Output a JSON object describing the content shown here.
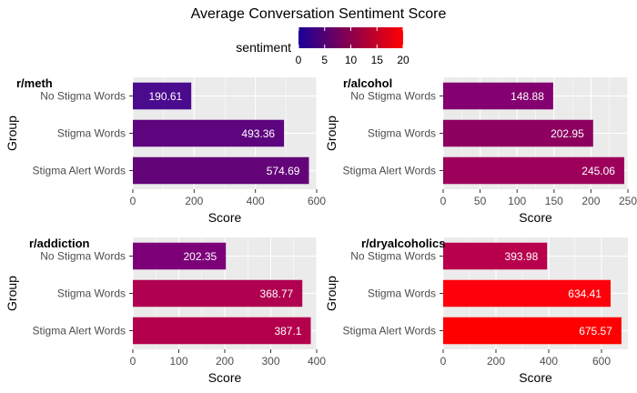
{
  "chart_data": {
    "type": "bar",
    "orientation": "horizontal",
    "title": "Average Conversation Sentiment Score",
    "xlabel": "Score",
    "ylabel": "Group",
    "grid": true,
    "legend": {
      "title": "sentiment",
      "placement": "top",
      "type": "colorbar",
      "range": [
        0,
        20
      ],
      "ticks": [
        0,
        5,
        10,
        15,
        20
      ],
      "colors": [
        "#1a0099",
        "#ff0000"
      ]
    },
    "panels": [
      {
        "title": "r/meth",
        "categories": [
          "No Stigma Words",
          "Stigma Words",
          "Stigma Alert Words"
        ],
        "values": [
          190.61,
          493.36,
          574.69
        ],
        "labels": [
          "190.61",
          "493.36",
          "574.69"
        ],
        "colors": [
          "#4a0b8e",
          "#5d047f",
          "#630478"
        ],
        "xlim": [
          0,
          600
        ],
        "xticks": [
          0,
          200,
          400,
          600
        ]
      },
      {
        "title": "r/alcohol",
        "categories": [
          "No Stigma Words",
          "Stigma Words",
          "Stigma Alert Words"
        ],
        "values": [
          148.88,
          202.95,
          245.06
        ],
        "labels": [
          "148.88",
          "202.95",
          "245.06"
        ],
        "colors": [
          "#840070",
          "#8d0060",
          "#9c005a"
        ],
        "xlim": [
          0,
          250
        ],
        "xticks": [
          0,
          50,
          100,
          150,
          200,
          250
        ]
      },
      {
        "title": "r/addiction",
        "categories": [
          "No Stigma Words",
          "Stigma Words",
          "Stigma Alert Words"
        ],
        "values": [
          202.35,
          368.77,
          387.1
        ],
        "labels": [
          "202.35",
          "368.77",
          "387.1"
        ],
        "colors": [
          "#7c0078",
          "#b00050",
          "#b4004c"
        ],
        "xlim": [
          0,
          400
        ],
        "xticks": [
          0,
          100,
          200,
          300,
          400
        ]
      },
      {
        "title": "r/dryalcoholics",
        "categories": [
          "No Stigma Words",
          "Stigma Words",
          "Stigma Alert Words"
        ],
        "values": [
          393.98,
          634.41,
          675.57
        ],
        "labels": [
          "393.98",
          "634.41",
          "675.57"
        ],
        "colors": [
          "#b8004c",
          "#fe000b",
          "#ff0000"
        ],
        "xlim": [
          0,
          700
        ],
        "xticks": [
          0,
          200,
          400,
          600
        ]
      }
    ]
  }
}
